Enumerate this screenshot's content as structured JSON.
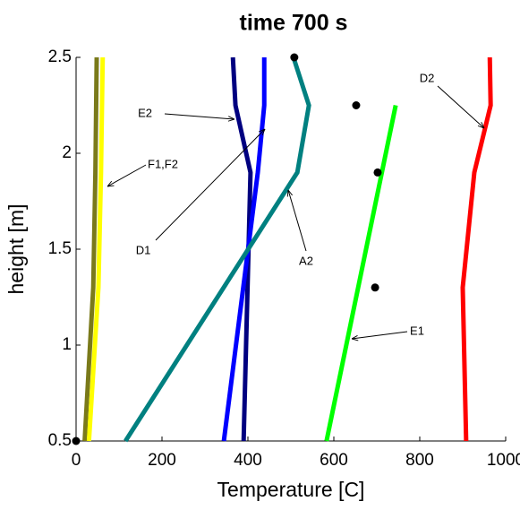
{
  "chart_data": {
    "type": "line",
    "title": "time 700 s",
    "x_label": "Temperature [C]",
    "y_label": "height [m]",
    "xlim": [
      0,
      1000
    ],
    "xticks": [
      0,
      200,
      400,
      600,
      800,
      1000
    ],
    "ylim": [
      0.5,
      2.5
    ],
    "yticks": [
      0.5,
      1,
      1.5,
      2,
      2.5
    ],
    "series": [
      {
        "name": "F1",
        "color": "#7a7a1a",
        "x": [
          48,
          45,
          40,
          20
        ],
        "y": [
          2.5,
          1.9,
          1.3,
          0.5
        ]
      },
      {
        "name": "F2",
        "color": "#ffff00",
        "x": [
          62,
          58,
          52,
          30
        ],
        "y": [
          2.5,
          1.9,
          1.3,
          0.5
        ]
      },
      {
        "name": "E2",
        "color": "#000080",
        "x": [
          365,
          371,
          406,
          390
        ],
        "y": [
          2.5,
          2.25,
          1.9,
          0.5
        ]
      },
      {
        "name": "D1",
        "color": "#0000ff",
        "x": [
          438,
          438,
          423,
          344
        ],
        "y": [
          2.5,
          2.25,
          1.9,
          0.5
        ]
      },
      {
        "name": "A2",
        "color": "#008080",
        "x": [
          506,
          542,
          515,
          115
        ],
        "y": [
          2.5,
          2.25,
          1.9,
          0.5
        ]
      },
      {
        "name": "E1",
        "color": "#00ff00",
        "x": [
          744,
          583
        ],
        "y": [
          2.25,
          0.5
        ]
      },
      {
        "name": "D2",
        "color": "#ff0000",
        "x": [
          963,
          965,
          927,
          900,
          908
        ],
        "y": [
          2.5,
          2.25,
          1.9,
          1.3,
          0.5
        ]
      }
    ],
    "points": {
      "color": "#000000",
      "x": [
        508,
        652,
        702,
        696,
        0
      ],
      "y": [
        2.5,
        2.25,
        1.9,
        1.3,
        0.5
      ]
    },
    "annotations": [
      "E2",
      "F1,F2",
      "D1",
      "A2",
      "E1",
      "D2"
    ]
  }
}
